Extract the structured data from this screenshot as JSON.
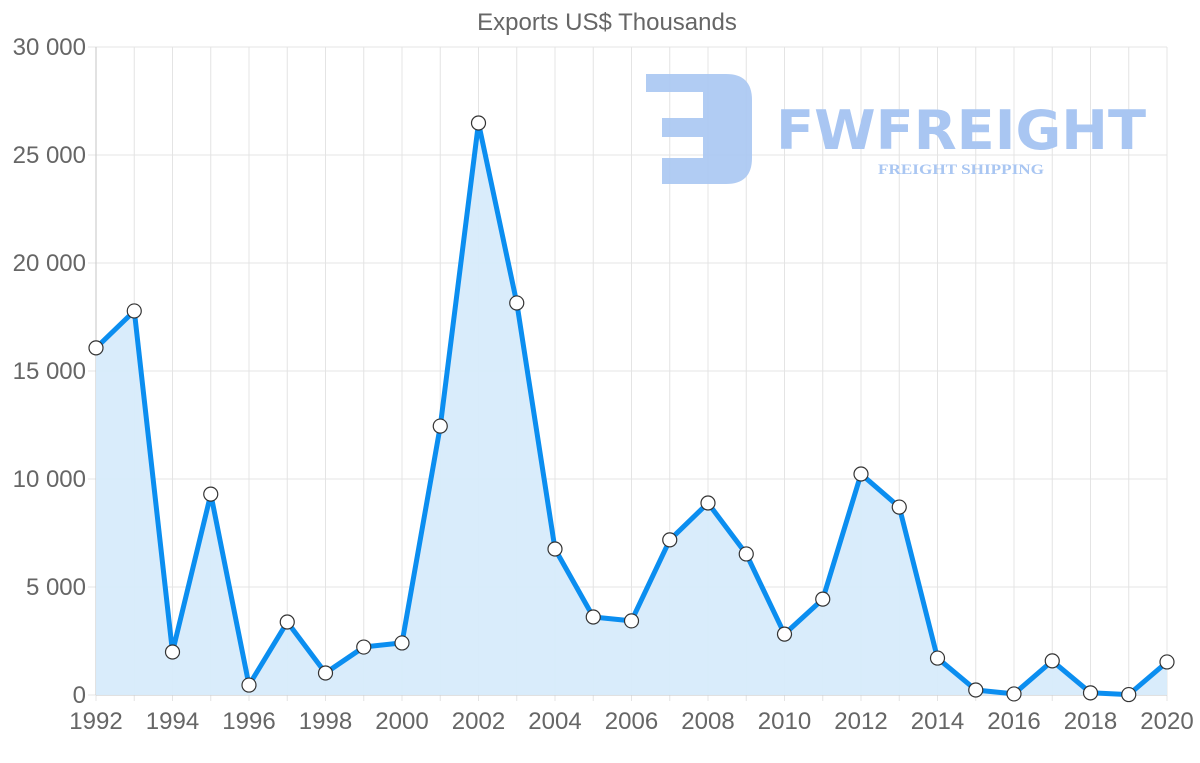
{
  "chart_data": {
    "type": "line",
    "title": "Exports US$ Thousands",
    "xlabel": "",
    "ylabel": "",
    "x": [
      1992,
      1993,
      1994,
      1995,
      1996,
      1997,
      1998,
      1999,
      2000,
      2001,
      2002,
      2003,
      2004,
      2005,
      2006,
      2007,
      2008,
      2009,
      2010,
      2011,
      2012,
      2013,
      2014,
      2015,
      2016,
      2017,
      2018,
      2019,
      2020
    ],
    "series": [
      {
        "name": "Exports US$ Thousands",
        "values": [
          16070,
          17780,
          1990,
          9300,
          460,
          3380,
          1020,
          2220,
          2410,
          12450,
          26480,
          18150,
          6760,
          3610,
          3430,
          7180,
          8890,
          6530,
          2820,
          4440,
          10230,
          8700,
          1710,
          230,
          50,
          1580,
          100,
          20,
          1530
        ],
        "color": "#0b8ef0",
        "fill": "#d7ebfb"
      }
    ],
    "ylim": [
      0,
      30000
    ],
    "y_ticks": [
      0,
      5000,
      10000,
      15000,
      20000,
      25000,
      30000
    ],
    "y_tick_labels": [
      "0",
      "5 000",
      "10 000",
      "15 000",
      "20 000",
      "25 000",
      "30 000"
    ],
    "x_tick_labels": [
      "1992",
      "1994",
      "1996",
      "1998",
      "2000",
      "2002",
      "2004",
      "2006",
      "2008",
      "2010",
      "2012",
      "2014",
      "2016",
      "2018",
      "2020"
    ],
    "grid": true,
    "legend": "none"
  },
  "watermark": {
    "brand": "FWFREIGHT",
    "tagline": "FREIGHT SHIPPING",
    "color": "#a9c6f2"
  }
}
